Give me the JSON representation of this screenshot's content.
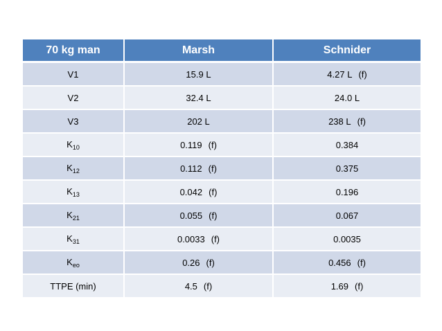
{
  "table": {
    "headers": [
      "70 kg man",
      "Marsh",
      "Schnider"
    ],
    "rows": [
      {
        "param": "V1",
        "sub": "",
        "marsh": "15.9 L",
        "marsh_flag": "",
        "schnider": "4.27 L",
        "schnider_flag": "(f)"
      },
      {
        "param": "V2",
        "sub": "",
        "marsh": "32.4 L",
        "marsh_flag": "",
        "schnider": "24.0 L",
        "schnider_flag": ""
      },
      {
        "param": "V3",
        "sub": "",
        "marsh": "202 L",
        "marsh_flag": "",
        "schnider": "238 L",
        "schnider_flag": "(f)"
      },
      {
        "param": "K",
        "sub": "10",
        "marsh": "0.119",
        "marsh_flag": "(f)",
        "schnider": "0.384",
        "schnider_flag": ""
      },
      {
        "param": "K",
        "sub": "12",
        "marsh": "0.112",
        "marsh_flag": "(f)",
        "schnider": "0.375",
        "schnider_flag": ""
      },
      {
        "param": "K",
        "sub": "13",
        "marsh": "0.042",
        "marsh_flag": "(f)",
        "schnider": "0.196",
        "schnider_flag": ""
      },
      {
        "param": "K",
        "sub": "21",
        "marsh": "0.055",
        "marsh_flag": "(f)",
        "schnider": "0.067",
        "schnider_flag": ""
      },
      {
        "param": "K",
        "sub": "31",
        "marsh": "0.0033",
        "marsh_flag": "(f)",
        "schnider": "0.0035",
        "schnider_flag": ""
      },
      {
        "param": "K",
        "sub": "eo",
        "marsh": "0.26",
        "marsh_flag": "(f)",
        "schnider": "0.456",
        "schnider_flag": "(f)"
      },
      {
        "param": "TTPE (min)",
        "sub": "",
        "marsh": "4.5",
        "marsh_flag": "(f)",
        "schnider": "1.69",
        "schnider_flag": "(f)"
      }
    ]
  },
  "colors": {
    "header_bg": "#4f81bd",
    "row_odd_bg": "#d0d8e8",
    "row_even_bg": "#e9edf4"
  }
}
